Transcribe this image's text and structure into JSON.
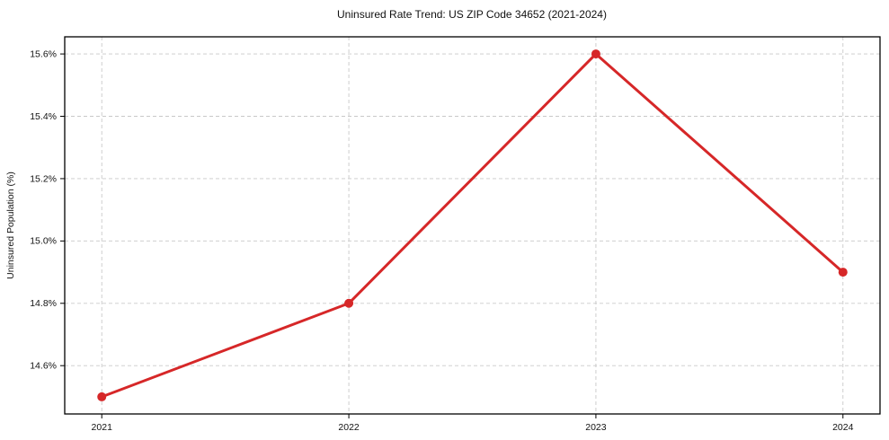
{
  "chart_data": {
    "type": "line",
    "title": "Uninsured Rate Trend: US ZIP Code 34652 (2021-2024)",
    "xlabel": "",
    "ylabel": "Uninsured Population (%)",
    "x": [
      2021,
      2022,
      2023,
      2024
    ],
    "series": [
      {
        "name": "Uninsured Rate",
        "values": [
          14.5,
          14.8,
          15.6,
          14.9
        ],
        "color": "#d62728",
        "marker": "circle"
      }
    ],
    "xticks": {
      "values": [
        2021,
        2022,
        2023,
        2024
      ],
      "labels": [
        "2021",
        "2022",
        "2023",
        "2024"
      ]
    },
    "yticks": {
      "values": [
        14.6,
        14.8,
        15.0,
        15.2,
        15.4,
        15.6
      ],
      "labels": [
        "14.6%",
        "14.8%",
        "15.0%",
        "15.2%",
        "15.4%",
        "15.6%"
      ]
    },
    "xlim": [
      2020.85,
      2024.15
    ],
    "ylim": [
      14.445,
      15.655
    ],
    "grid": true,
    "grid_style": {
      "color": "#c9c9c9",
      "dash": "4 3"
    },
    "legend": "none",
    "background": "#ffffff",
    "line_width": 3,
    "marker_radius": 5
  }
}
